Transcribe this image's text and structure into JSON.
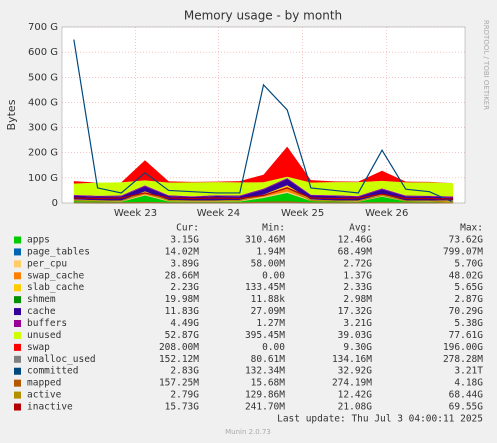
{
  "chart_data": {
    "type": "area",
    "title": "Memory usage - by month",
    "ylabel": "Bytes",
    "side_label": "RRDTOOL / TOBI OETIKER",
    "footer": "Last update: Thu Jul  3 04:00:11 2025",
    "version": "Munin 2.0.73",
    "stat_headers": [
      "Cur:",
      "Min:",
      "Avg:",
      "Max:"
    ],
    "x": [
      1,
      3,
      5,
      7,
      9,
      11,
      13,
      15,
      17,
      19,
      21,
      23,
      25,
      27,
      29,
      31,
      33
    ],
    "xlim": [
      0,
      34
    ],
    "xticks": [
      {
        "value": 6.2,
        "label": "Week 23"
      },
      {
        "value": 13.2,
        "label": "Week 24"
      },
      {
        "value": 20.3,
        "label": "Week 25"
      },
      {
        "value": 27.4,
        "label": "Week 26"
      }
    ],
    "ylim": [
      0,
      700000000000.0
    ],
    "yticks": [
      0,
      {
        "value": 100000000000.0,
        "label": "100 G"
      },
      {
        "value": 200000000000.0,
        "label": "200 G"
      },
      {
        "value": 300000000000.0,
        "label": "300 G"
      },
      {
        "value": 400000000000.0,
        "label": "400 G"
      },
      {
        "value": 500000000000.0,
        "label": "500 G"
      },
      {
        "value": 600000000000.0,
        "label": "600 G"
      },
      {
        "value": 700000000000.0,
        "label": "700 G"
      }
    ],
    "grid": true,
    "series": [
      {
        "name": "apps",
        "color": "#00cc00",
        "draw": "stack",
        "stats": [
          "3.15G",
          "310.46M",
          "12.46G",
          "73.62G"
        ],
        "values": [
          8000000000.0,
          6000000000.0,
          5000000000.0,
          30000000000.0,
          6000000000.0,
          5000000000.0,
          5000000000.0,
          6000000000.0,
          20000000000.0,
          40000000000.0,
          8000000000.0,
          6000000000.0,
          5000000000.0,
          25000000000.0,
          6000000000.0,
          5000000000.0,
          4000000000.0
        ]
      },
      {
        "name": "page_tables",
        "color": "#0066b3",
        "draw": "stack",
        "stats": [
          "14.02M",
          "1.94M",
          "68.49M",
          "799.07M"
        ],
        "values": [
          100000000.0,
          50000000.0,
          50000000.0,
          200000000.0,
          50000000.0,
          50000000.0,
          50000000.0,
          50000000.0,
          300000000.0,
          400000000.0,
          50000000.0,
          50000000.0,
          50000000.0,
          200000000.0,
          50000000.0,
          50000000.0,
          20000000.0
        ]
      },
      {
        "name": "per_cpu",
        "color": "#ffcc66",
        "draw": "stack",
        "stats": [
          "3.89G",
          "58.00M",
          "2.72G",
          "5.70G"
        ],
        "values": [
          3000000000.0,
          3000000000.0,
          2000000000.0,
          3000000000.0,
          3000000000.0,
          2000000000.0,
          3000000000.0,
          3000000000.0,
          4000000000.0,
          5000000000.0,
          3000000000.0,
          2000000000.0,
          3000000000.0,
          3000000000.0,
          2000000000.0,
          3000000000.0,
          4000000000.0
        ]
      },
      {
        "name": "swap_cache",
        "color": "#ff8000",
        "draw": "stack",
        "stats": [
          "28.66M",
          "0.00",
          "1.37G",
          "48.02G"
        ],
        "values": [
          1000000000.0,
          0,
          0,
          10000000000.0,
          1000000000.0,
          0,
          0,
          1000000000.0,
          5000000000.0,
          20000000000.0,
          1000000000.0,
          0,
          0,
          3000000000.0,
          0,
          0,
          30000000.0
        ]
      },
      {
        "name": "slab_cache",
        "color": "#ffcc00",
        "draw": "stack",
        "stats": [
          "2.23G",
          "133.45M",
          "2.33G",
          "5.65G"
        ],
        "values": [
          2000000000.0,
          2000000000.0,
          2000000000.0,
          3000000000.0,
          2000000000.0,
          2000000000.0,
          2000000000.0,
          2000000000.0,
          4000000000.0,
          5000000000.0,
          2000000000.0,
          2000000000.0,
          2000000000.0,
          3000000000.0,
          2000000000.0,
          2000000000.0,
          2000000000.0
        ]
      },
      {
        "name": "shmem",
        "color": "#008f00",
        "draw": "stack",
        "stats": [
          "19.98M",
          "11.88k",
          "2.98M",
          "2.87G"
        ],
        "values": [
          10000000.0,
          1000000.0,
          1000000.0,
          10000000.0,
          1000000.0,
          1000000.0,
          1000000.0,
          1000000.0,
          10000000.0,
          20000000.0,
          1000000.0,
          1000000.0,
          1000000.0,
          10000000.0,
          1000000.0,
          1000000.0,
          20000000.0
        ]
      },
      {
        "name": "cache",
        "color": "#330099",
        "draw": "stack",
        "stats": [
          "11.83G",
          "27.09M",
          "17.32G",
          "70.29G"
        ],
        "values": [
          15000000000.0,
          15000000000.0,
          18000000000.0,
          20000000000.0,
          16000000000.0,
          15000000000.0,
          18000000000.0,
          15000000000.0,
          20000000000.0,
          25000000000.0,
          16000000000.0,
          18000000000.0,
          15000000000.0,
          20000000000.0,
          17000000000.0,
          16000000000.0,
          12000000000.0
        ]
      },
      {
        "name": "buffers",
        "color": "#990099",
        "draw": "stack",
        "stats": [
          "4.49G",
          "1.27M",
          "3.21G",
          "5.38G"
        ],
        "values": [
          3000000000.0,
          3000000000.0,
          3000000000.0,
          4000000000.0,
          3000000000.0,
          3000000000.0,
          3000000000.0,
          3000000000.0,
          4000000000.0,
          4000000000.0,
          3000000000.0,
          3000000000.0,
          3000000000.0,
          4000000000.0,
          3000000000.0,
          3000000000.0,
          4000000000.0
        ]
      },
      {
        "name": "unused",
        "color": "#ccff00",
        "draw": "stack",
        "stats": [
          "52.87G",
          "395.45M",
          "39.03G",
          "77.61G"
        ],
        "values": [
          45000000000.0,
          52000000000.0,
          52000000000.0,
          20000000000.0,
          50000000000.0,
          55000000000.0,
          52000000000.0,
          52000000000.0,
          25000000000.0,
          5000000000.0,
          48000000000.0,
          52000000000.0,
          55000000000.0,
          30000000000.0,
          52000000000.0,
          53000000000.0,
          53000000000.0
        ]
      },
      {
        "name": "swap",
        "color": "#ff0000",
        "draw": "stack",
        "stats": [
          "208.00M",
          "0.00",
          "9.30G",
          "196.00G"
        ],
        "values": [
          10000000000.0,
          0,
          0,
          80000000000.0,
          5000000000.0,
          2000000000.0,
          2000000000.0,
          5000000000.0,
          30000000000.0,
          120000000000.0,
          10000000000.0,
          3000000000.0,
          2000000000.0,
          40000000000.0,
          3000000000.0,
          2000000000.0,
          200000000.0
        ]
      },
      {
        "name": "vmalloc_used",
        "color": "#808080",
        "draw": "line",
        "stats": [
          "152.12M",
          "80.61M",
          "134.16M",
          "278.28M"
        ],
        "values": [
          150000000.0,
          130000000.0,
          130000000.0,
          150000000.0,
          130000000.0,
          130000000.0,
          130000000.0,
          130000000.0,
          200000000.0,
          250000000.0,
          130000000.0,
          130000000.0,
          130000000.0,
          150000000.0,
          130000000.0,
          130000000.0,
          150000000.0
        ]
      },
      {
        "name": "committed",
        "color": "#00487d",
        "draw": "line",
        "stats": [
          "2.83G",
          "132.34M",
          "32.92G",
          "3.21T"
        ],
        "values": [
          650000000000.0,
          60000000000.0,
          40000000000.0,
          120000000000.0,
          50000000000.0,
          45000000000.0,
          40000000000.0,
          40000000000.0,
          470000000000.0,
          370000000000.0,
          60000000000.0,
          50000000000.0,
          40000000000.0,
          210000000000.0,
          55000000000.0,
          45000000000.0,
          3000000000.0
        ]
      },
      {
        "name": "mapped",
        "color": "#b35a00",
        "draw": "line",
        "stats": [
          "157.25M",
          "15.68M",
          "274.19M",
          "4.18G"
        ],
        "values": [
          300000000.0,
          200000000.0,
          200000000.0,
          2000000000.0,
          200000000.0,
          200000000.0,
          200000000.0,
          200000000.0,
          3000000000.0,
          4000000000.0,
          200000000.0,
          200000000.0,
          200000000.0,
          1000000000.0,
          200000000.0,
          200000000.0,
          160000000.0
        ]
      },
      {
        "name": "active",
        "color": "#b38f00",
        "draw": "line",
        "stats": [
          "2.79G",
          "129.86M",
          "12.42G",
          "68.44G"
        ],
        "values": [
          10000000000.0,
          8000000000.0,
          8000000000.0,
          40000000000.0,
          10000000000.0,
          8000000000.0,
          8000000000.0,
          10000000000.0,
          30000000000.0,
          60000000000.0,
          10000000000.0,
          8000000000.0,
          8000000000.0,
          30000000000.0,
          8000000000.0,
          8000000000.0,
          3000000000.0
        ]
      },
      {
        "name": "inactive",
        "color": "#b30000",
        "draw": "line",
        "stats": [
          "15.73G",
          "241.70M",
          "21.08G",
          "69.55G"
        ],
        "values": [
          20000000000.0,
          18000000000.0,
          20000000000.0,
          40000000000.0,
          20000000000.0,
          18000000000.0,
          20000000000.0,
          18000000000.0,
          30000000000.0,
          60000000000.0,
          20000000000.0,
          18000000000.0,
          20000000000.0,
          35000000000.0,
          18000000000.0,
          18000000000.0,
          16000000000.0
        ]
      }
    ]
  }
}
